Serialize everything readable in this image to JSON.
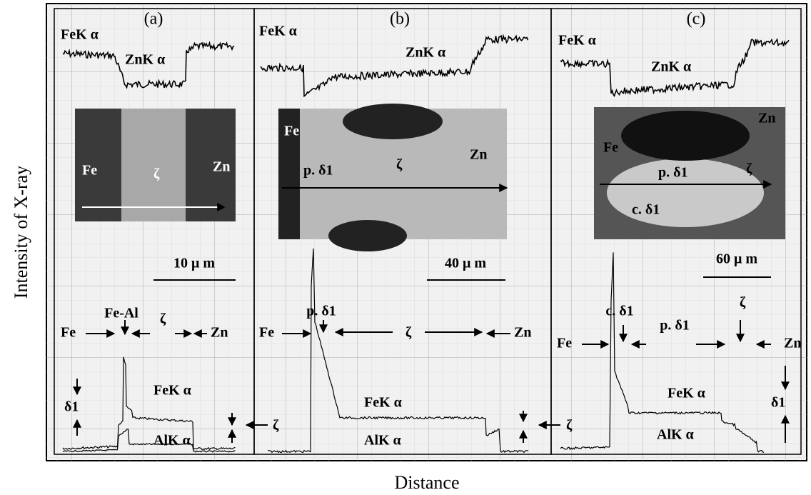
{
  "y_axis_label": "Intensity of X-ray",
  "x_axis_label": "Distance",
  "panels": [
    {
      "label": "(a)",
      "top_labels": [
        "FeK α",
        "ZnK α"
      ],
      "image_labels": [
        "Fe",
        "ζ",
        "Zn"
      ],
      "scale_bar": "10 μ m",
      "phase_labels": [
        "Fe-Al",
        "Fe",
        "ζ",
        "Zn"
      ],
      "bottom_labels": [
        "δ1",
        "FeK α",
        "AlK α",
        "ζ"
      ]
    },
    {
      "label": "(b)",
      "top_labels": [
        "FeK α",
        "ZnK α"
      ],
      "image_labels": [
        "Fe",
        "p. δ1",
        "ζ",
        "Zn"
      ],
      "scale_bar": "40 μ m",
      "phase_labels": [
        "p. δ1",
        "Fe",
        "ζ",
        "Zn"
      ],
      "bottom_labels": [
        "FeK α",
        "AlK α",
        "ζ"
      ]
    },
    {
      "label": "(c)",
      "top_labels": [
        "FeK α",
        "ZnK α"
      ],
      "image_labels": [
        "Fe",
        "Zn",
        "p. δ1",
        "c. δ1",
        "ζ"
      ],
      "scale_bar": "60 μ m",
      "phase_labels": [
        "c. δ1",
        "ζ",
        "Fe",
        "p. δ1",
        "Zn"
      ],
      "bottom_labels": [
        "FeK α",
        "AlK α",
        "δ1"
      ]
    }
  ]
}
